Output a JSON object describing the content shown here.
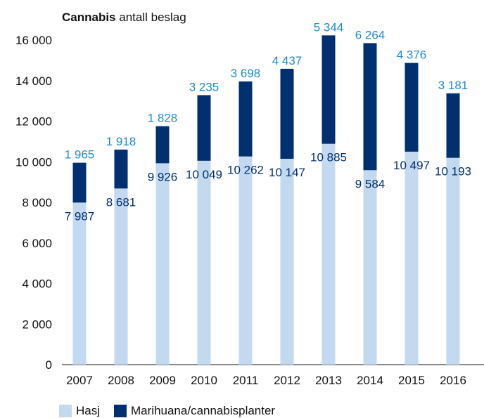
{
  "chart_data": {
    "type": "bar",
    "stacked": true,
    "title_bold": "Cannabis",
    "title_rest": " antall beslag",
    "categories": [
      "2007",
      "2008",
      "2009",
      "2010",
      "2011",
      "2012",
      "2013",
      "2014",
      "2015",
      "2016"
    ],
    "series": [
      {
        "name": "Hasj",
        "color": "#c2d9f0",
        "label_color": "#00306f",
        "values": [
          7987,
          8681,
          9926,
          10049,
          10262,
          10147,
          10885,
          9584,
          10497,
          10193
        ],
        "labels": [
          "7 987",
          "8 681",
          "9 926",
          "10 049",
          "10 262",
          "10 147",
          "10 885",
          "9 584",
          "10 497",
          "10 193"
        ]
      },
      {
        "name": "Marihuana/cannabisplanter",
        "color": "#00306f",
        "label_color": "#1f8ac9",
        "values": [
          1965,
          1918,
          1828,
          3235,
          3698,
          4437,
          5344,
          6264,
          4376,
          3181
        ],
        "labels": [
          "1 965",
          "1 918",
          "1 828",
          "3 235",
          "3 698",
          "4 437",
          "5 344",
          "6 264",
          "4 376",
          "3 181"
        ]
      }
    ],
    "ylim": [
      0,
      16000
    ],
    "yticks": [
      0,
      2000,
      4000,
      6000,
      8000,
      10000,
      12000,
      14000,
      16000
    ],
    "ytick_labels": [
      "0",
      "2 000",
      "4 000",
      "6 000",
      "8 000",
      "10 000",
      "12 000",
      "14 000",
      "16 000"
    ],
    "legend_position": "bottom-left",
    "grid": false
  }
}
